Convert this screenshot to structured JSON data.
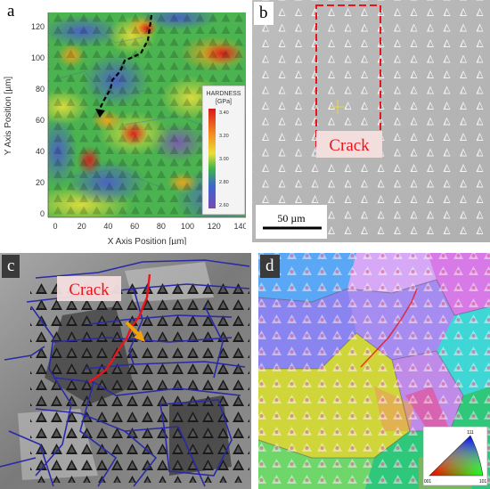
{
  "panels": {
    "a": {
      "label": "a",
      "x_axis_title": "X Axis Position [µm]",
      "y_axis_title": "Y Axis Position [µm]",
      "x_ticks": [
        "0",
        "20",
        "40",
        "60",
        "80",
        "100",
        "120",
        "140"
      ],
      "y_ticks": [
        "0",
        "20",
        "40",
        "60",
        "80",
        "100",
        "120"
      ],
      "legend": {
        "title": "HARDNESS",
        "unit": "[GPa]",
        "ticks": [
          "3.40",
          "3.20",
          "3.00",
          "2.80",
          "2.60"
        ]
      }
    },
    "b": {
      "label": "b",
      "crack_label": "Crack",
      "scale_bar": "50 µm"
    },
    "c": {
      "label": "c",
      "crack_label": "Crack"
    },
    "d": {
      "label": "d",
      "ipf_key": [
        "111",
        "001",
        "101"
      ]
    }
  },
  "colors": {
    "crack_red": "#e8161c",
    "boundary_blue": "#2a2aa8",
    "arrow_orange": "#f2a20a"
  }
}
